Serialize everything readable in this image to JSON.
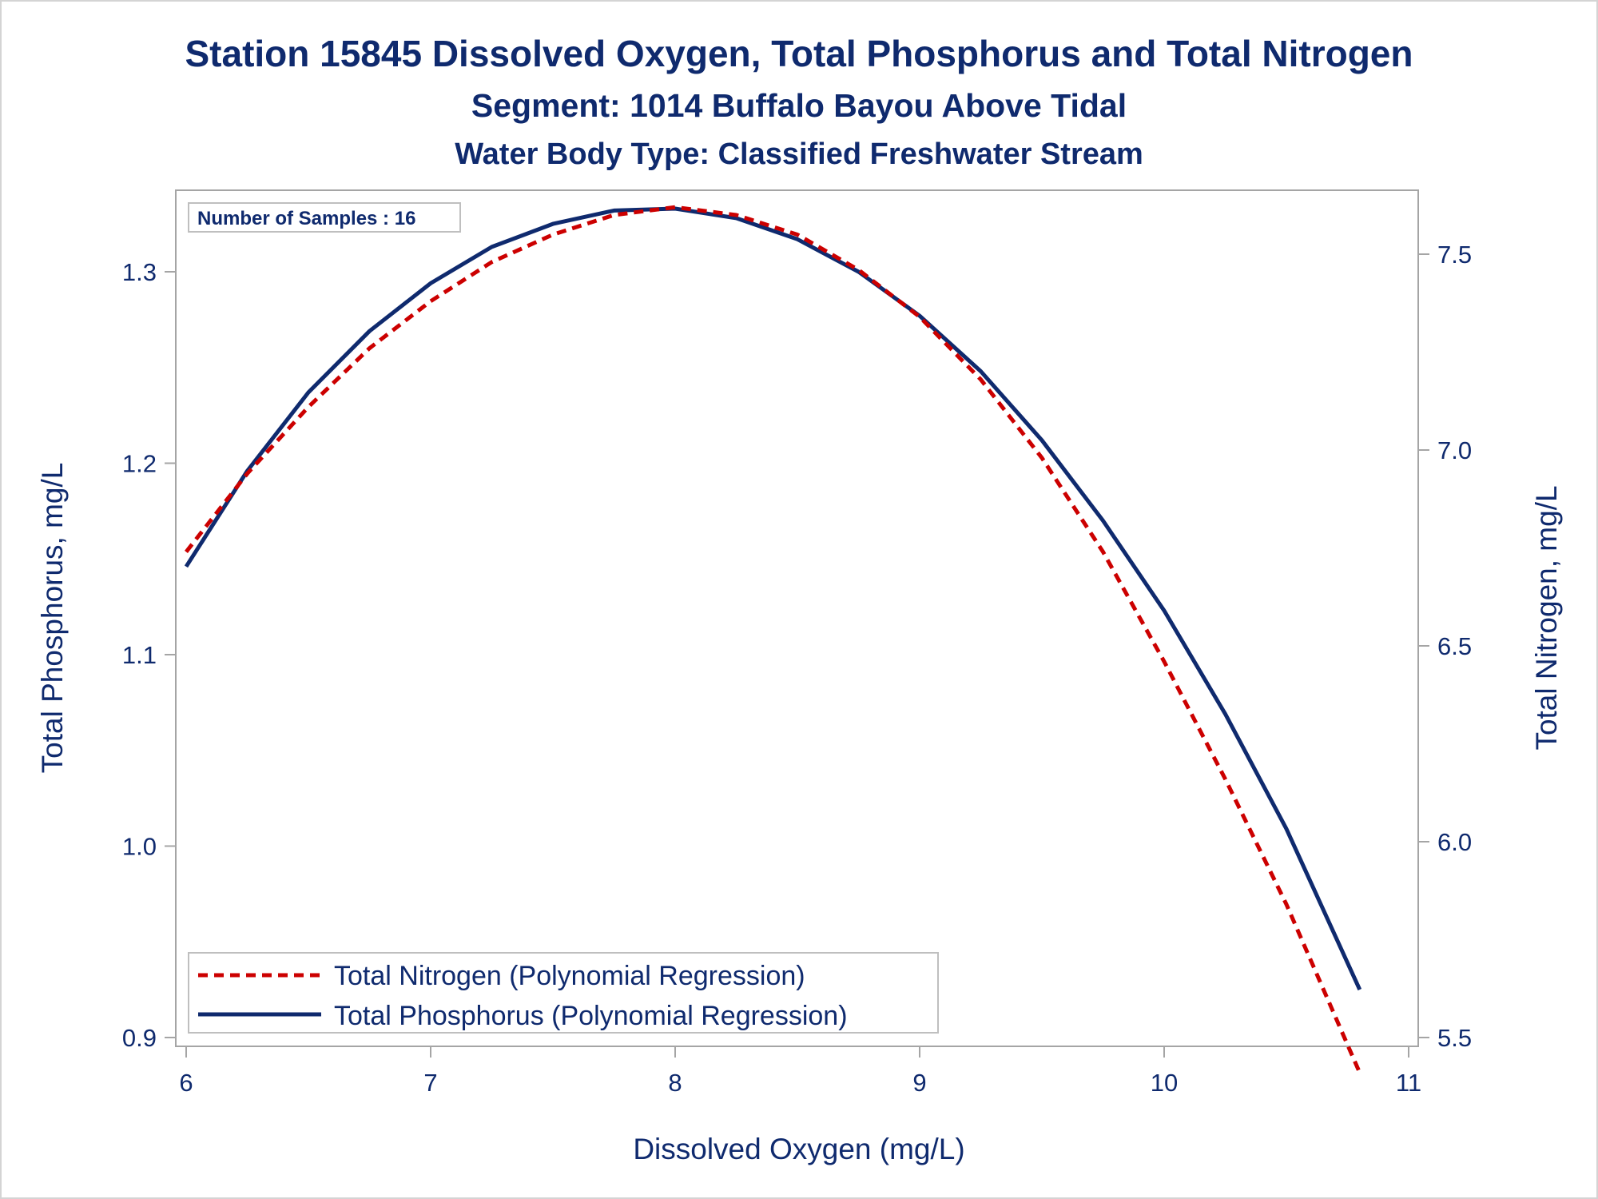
{
  "chart_data": {
    "type": "line",
    "title": "Station 15845  Dissolved Oxygen, Total Phosphorus and Total Nitrogen",
    "subtitle": "Segment: 1014  Buffalo Bayou Above Tidal",
    "subtitle2": "Water Body Type: Classified Freshwater Stream",
    "xlabel": "Dissolved Oxygen (mg/L)",
    "ylabel": "Total Phosphorus, mg/L",
    "y2label": "Total Nitrogen, mg/L",
    "xlim": [
      6,
      11
    ],
    "ylim": [
      0.9,
      1.333
    ],
    "y2lim": [
      5.5,
      7.627
    ],
    "x_ticks": [
      "6",
      "7",
      "8",
      "9",
      "10",
      "11"
    ],
    "y_ticks": [
      "0.9",
      "1.0",
      "1.1",
      "1.2",
      "1.3"
    ],
    "y2_ticks": [
      "5.5",
      "6.0",
      "6.5",
      "7.0",
      "7.5"
    ],
    "annotation": "Number of Samples : 16",
    "legend_position": "bottom-left",
    "grid": false,
    "series": [
      {
        "name": "Total Nitrogen (Polynomial Regression)",
        "axis": "right",
        "color": "#cc0000",
        "style": "dashed",
        "x": [
          6.0,
          6.25,
          6.5,
          6.75,
          7.0,
          7.25,
          7.5,
          7.75,
          8.0,
          8.25,
          8.5,
          8.75,
          9.0,
          9.25,
          9.5,
          9.75,
          10.0,
          10.25,
          10.5,
          10.8
        ],
        "values": [
          6.74,
          6.94,
          7.11,
          7.26,
          7.38,
          7.48,
          7.55,
          7.6,
          7.62,
          7.6,
          7.55,
          7.46,
          7.34,
          7.18,
          6.98,
          6.74,
          6.46,
          6.16,
          5.84,
          5.41
        ]
      },
      {
        "name": "Total Phosphorus (Polynomial Regression)",
        "axis": "left",
        "color": "#0f2a6e",
        "style": "solid",
        "x": [
          6.0,
          6.25,
          6.5,
          6.75,
          7.0,
          7.25,
          7.5,
          7.75,
          8.0,
          8.25,
          8.5,
          8.75,
          9.0,
          9.25,
          9.5,
          9.75,
          10.0,
          10.25,
          10.5,
          10.8
        ],
        "values": [
          1.146,
          1.196,
          1.237,
          1.269,
          1.294,
          1.313,
          1.325,
          1.332,
          1.333,
          1.328,
          1.317,
          1.3,
          1.277,
          1.248,
          1.212,
          1.17,
          1.123,
          1.069,
          1.009,
          0.925
        ]
      }
    ]
  }
}
